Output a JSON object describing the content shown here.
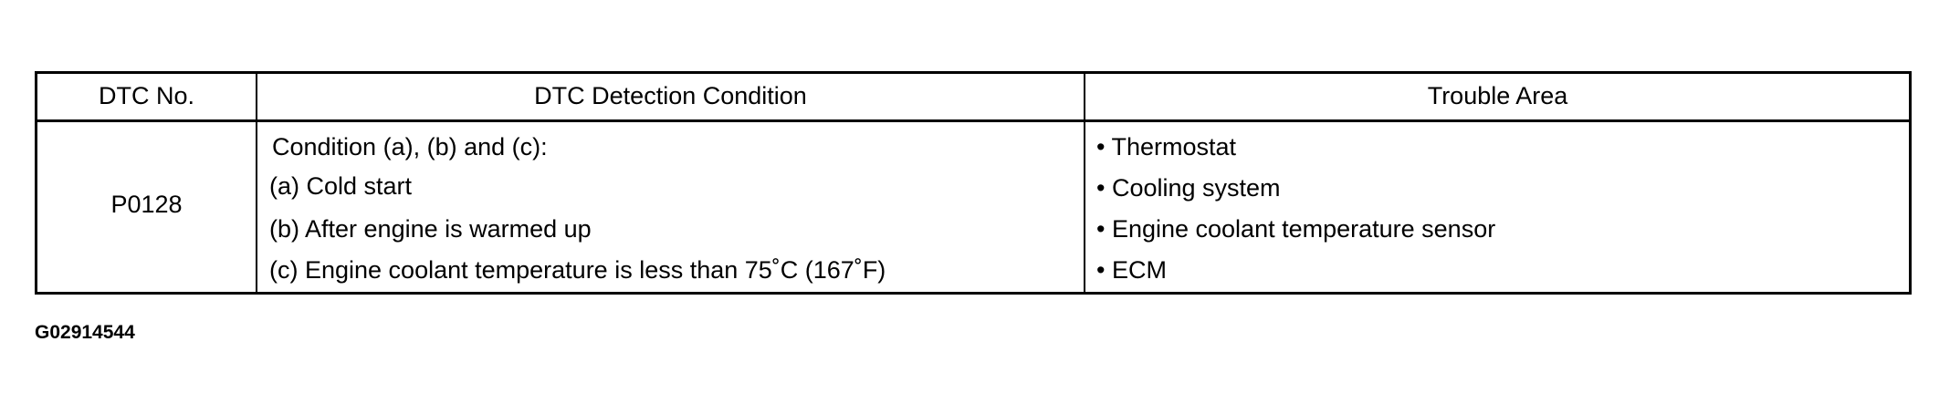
{
  "table": {
    "headers": [
      "DTC No.",
      "DTC Detection Condition",
      "Trouble Area"
    ],
    "rows": [
      {
        "dtc_no": "P0128",
        "detection_condition": [
          "Condition (a), (b) and (c):",
          "(a) Cold start",
          "(b) After engine is warmed up",
          "(c) Engine coolant temperature is less than 75˚C (167˚F)"
        ],
        "trouble_area": [
          "• Thermostat",
          "• Cooling system",
          "• Engine coolant temperature sensor",
          "• ECM"
        ]
      }
    ]
  },
  "figure_id": "G02914544"
}
